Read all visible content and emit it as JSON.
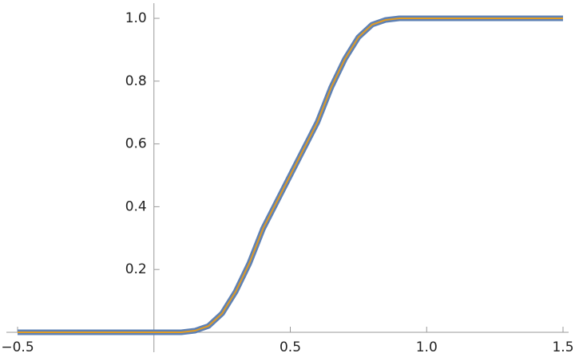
{
  "chart_data": {
    "type": "line",
    "x": [
      -0.5,
      0,
      0.1,
      0.15,
      0.2,
      0.25,
      0.3,
      0.35,
      0.4,
      0.45,
      0.5,
      0.55,
      0.6,
      0.65,
      0.7,
      0.75,
      0.8,
      0.85,
      0.9,
      1.0,
      1.5
    ],
    "series": [
      {
        "color": "#5e81b5",
        "values": [
          0,
          0,
          0,
          0.005,
          0.02,
          0.06,
          0.13,
          0.22,
          0.33,
          0.415,
          0.5,
          0.585,
          0.67,
          0.78,
          0.87,
          0.94,
          0.98,
          0.995,
          1,
          1,
          1
        ]
      },
      {
        "color": "#e19c24",
        "values": [
          0,
          0,
          0,
          0.005,
          0.02,
          0.06,
          0.13,
          0.22,
          0.33,
          0.415,
          0.5,
          0.585,
          0.67,
          0.78,
          0.87,
          0.94,
          0.98,
          0.995,
          1,
          1,
          1
        ]
      }
    ],
    "xlim": [
      -0.5,
      1.5
    ],
    "ylim": [
      0,
      1
    ],
    "xticks": [
      {
        "value": -0.5,
        "label": "−0.5"
      },
      0.5,
      {
        "value": 1,
        "label": "1.0"
      },
      1.5
    ],
    "yticks": [
      0.2,
      0.4,
      0.6,
      0.8,
      {
        "value": 1,
        "label": "1.0"
      }
    ]
  }
}
